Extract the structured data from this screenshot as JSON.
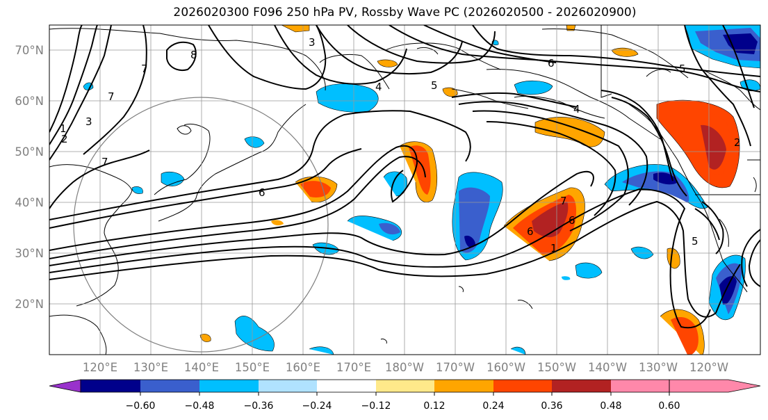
{
  "title": "2026020300 F096 250 hPa PV, Rossby Wave PC (2026020500 - 2026020900)",
  "lat_labels": [
    "70°N",
    "60°N",
    "50°N",
    "40°N",
    "30°N",
    "20°N"
  ],
  "lon_labels": [
    "120°E",
    "130°E",
    "140°E",
    "150°E",
    "160°E",
    "170°E",
    "180°W",
    "170°W",
    "160°W",
    "150°W",
    "140°W",
    "130°W",
    "120°W"
  ],
  "contour_labels": [
    "8",
    "7",
    "7",
    "1",
    "3",
    "2",
    "7",
    "3",
    "4",
    "5",
    "6",
    "5",
    "4",
    "6",
    "6",
    "1",
    "7",
    "6",
    "5",
    "2"
  ],
  "colorbar": {
    "ticks": [
      "−0.60",
      "−0.48",
      "−0.36",
      "−0.24",
      "−0.12",
      "0.12",
      "0.24",
      "0.36",
      "0.48",
      "0.60"
    ],
    "colors": [
      "#9932cc",
      "#00008b",
      "#3a5fcd",
      "#00bfff",
      "#b0e2ff",
      "#ffffff",
      "#ffe98a",
      "#ffa500",
      "#ff4500",
      "#b22222",
      "#ff88aa"
    ]
  },
  "colors": {
    "grid": "#888888",
    "coast": "#000000",
    "circle": "#808080"
  }
}
